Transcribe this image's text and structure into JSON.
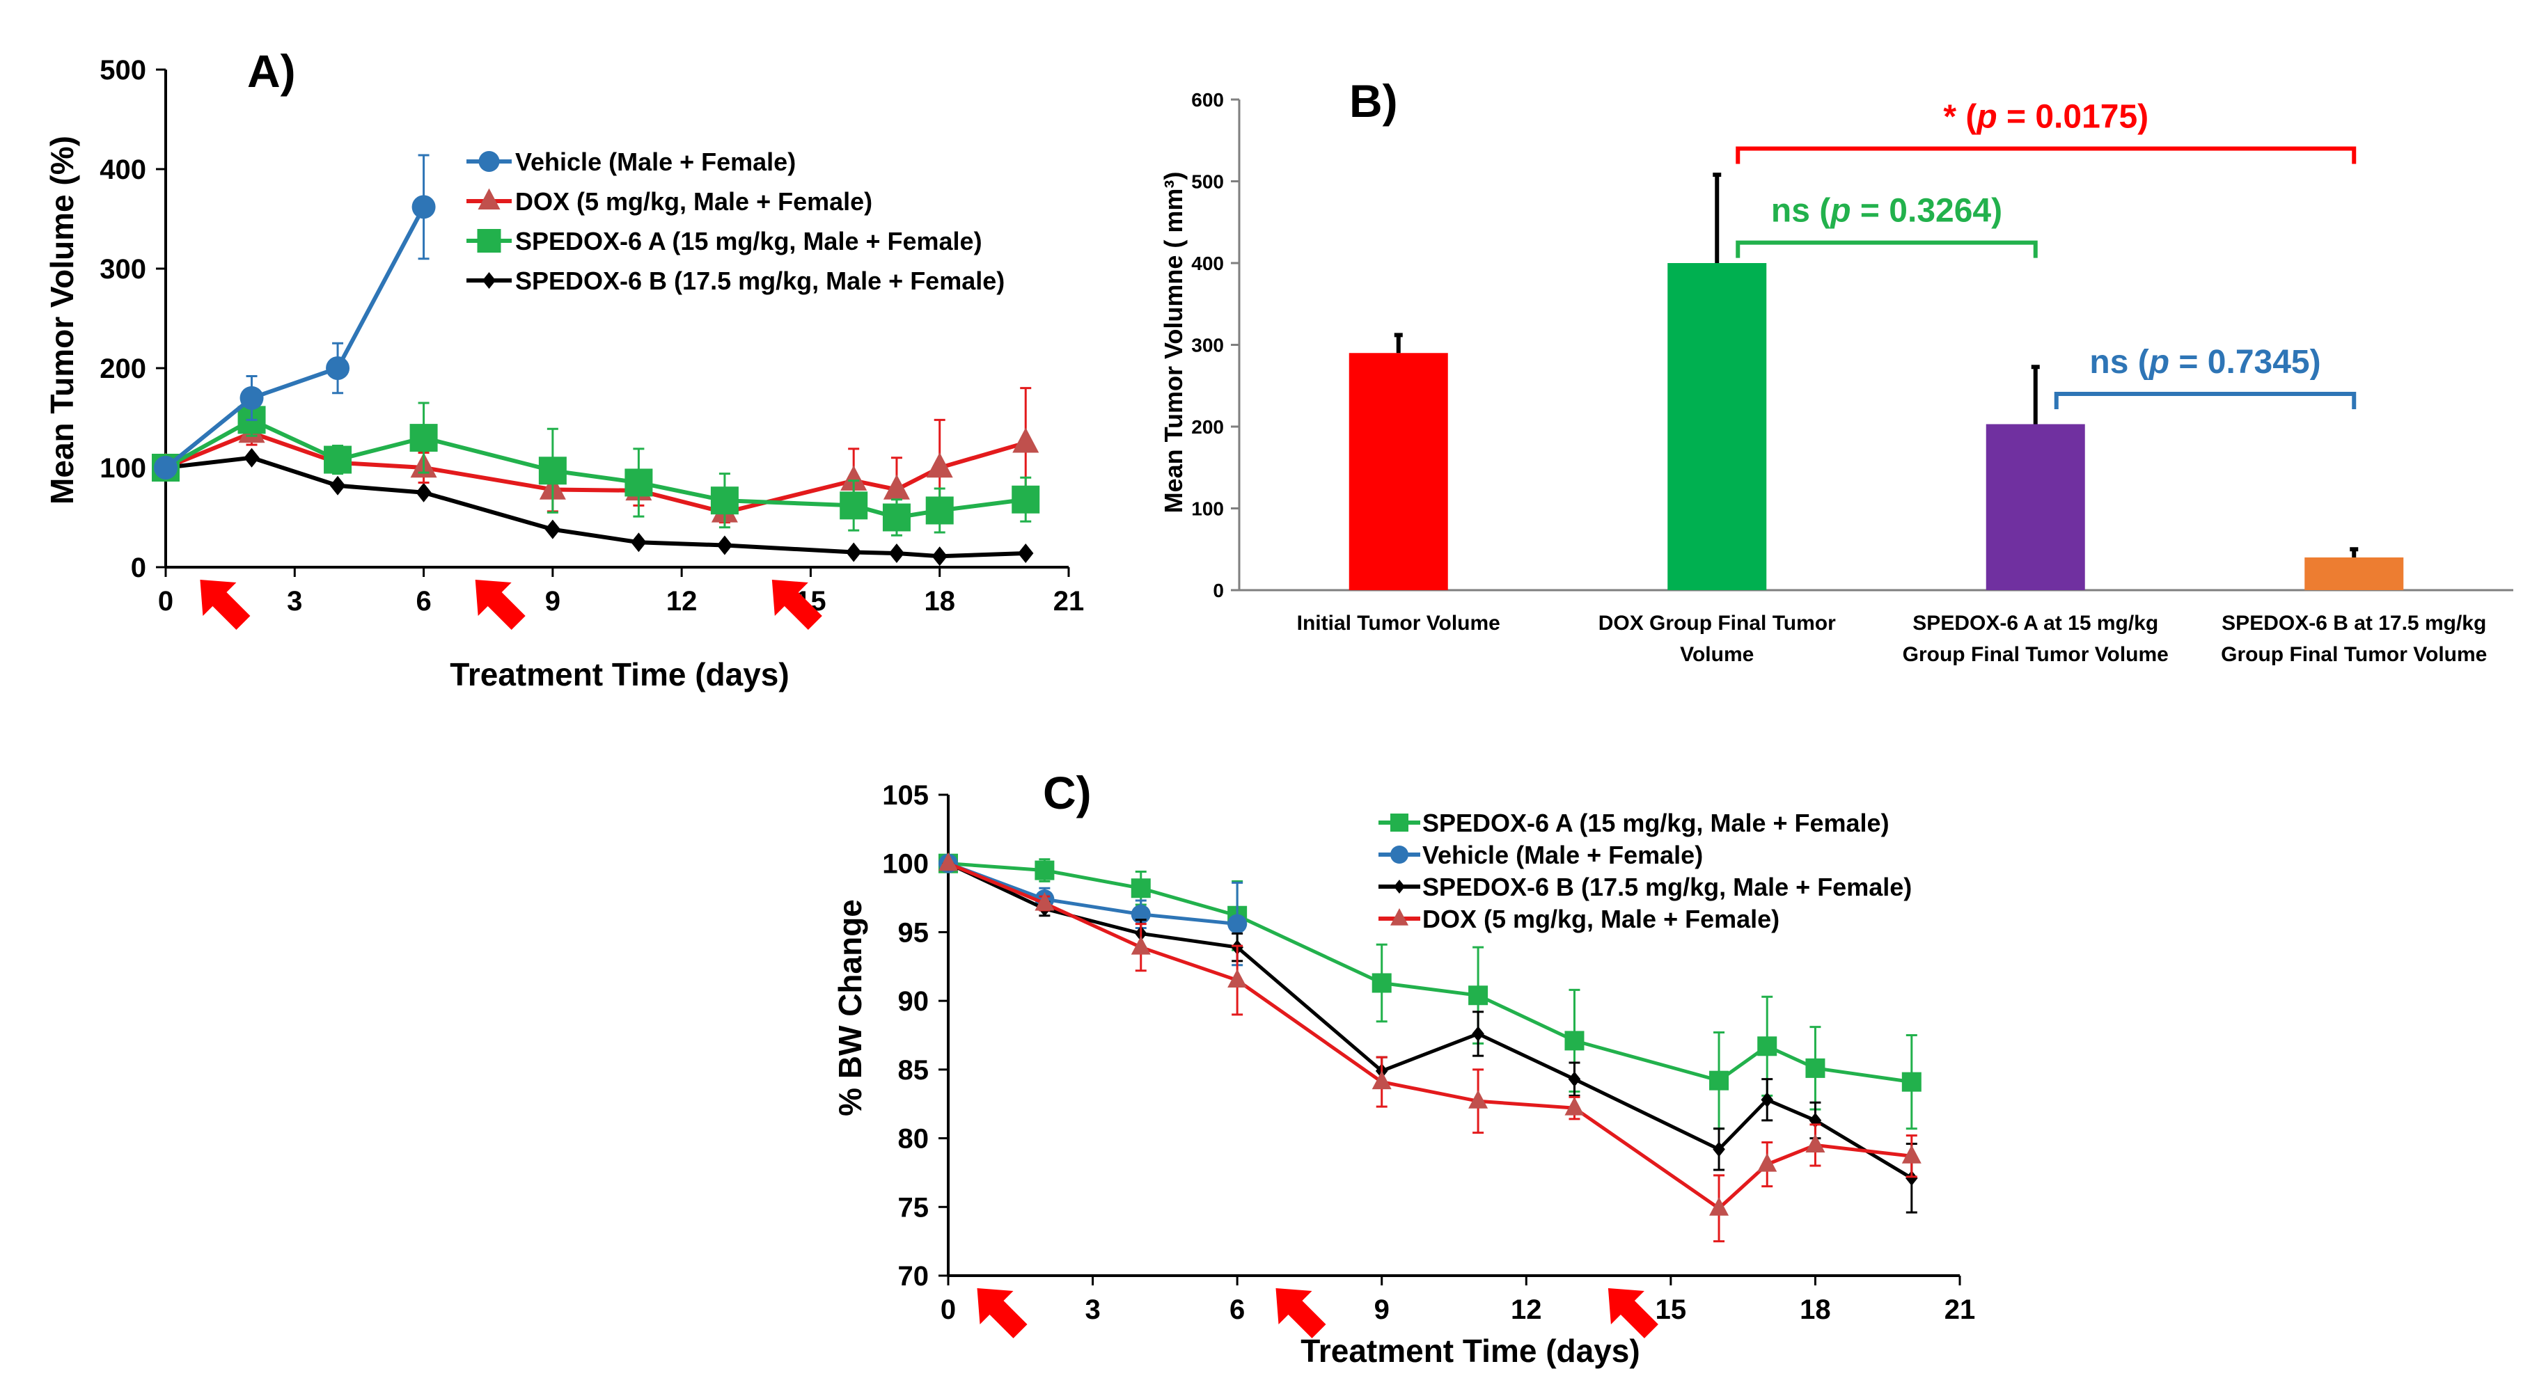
{
  "chart_data": [
    {
      "panel": "A)",
      "type": "line",
      "xlabel": "Treatment Time (days)",
      "ylabel": "Mean Tumor Volume (%)",
      "xlim": [
        0,
        21
      ],
      "ylim": [
        0,
        500
      ],
      "xticks": [
        0,
        3,
        6,
        9,
        12,
        15,
        18,
        21
      ],
      "yticks": [
        0,
        100,
        200,
        300,
        400,
        500
      ],
      "dosing_days": [
        0.8,
        7.2,
        14.1
      ],
      "series": [
        {
          "name": "Vehicle (Male + Female)",
          "color": "#2E75B6",
          "marker": "circle",
          "x": [
            0,
            2,
            4,
            6
          ],
          "y": [
            100,
            170,
            200,
            362
          ],
          "err": [
            0,
            22,
            25,
            52
          ]
        },
        {
          "name": "DOX (5 mg/kg, Male + Female)",
          "color": "#E31A1C",
          "markerColor": "#C0504D",
          "marker": "triangle",
          "x": [
            0,
            2,
            4,
            6,
            9,
            11,
            13,
            16,
            17,
            18,
            20
          ],
          "y": [
            100,
            135,
            105,
            100,
            78,
            77,
            55,
            87,
            78,
            100,
            125
          ],
          "err": [
            0,
            12,
            10,
            15,
            22,
            15,
            10,
            32,
            32,
            48,
            55
          ]
        },
        {
          "name": "SPEDOX-6  A (15 mg/kg, Male + Female)",
          "color": "#22B14C",
          "markerColor": "#22B14C",
          "marker": "square",
          "x": [
            0,
            2,
            4,
            6,
            9,
            11,
            13,
            16,
            17,
            18,
            20
          ],
          "y": [
            100,
            148,
            108,
            130,
            97,
            85,
            67,
            62,
            50,
            57,
            68
          ],
          "err": [
            0,
            16,
            14,
            35,
            42,
            34,
            27,
            25,
            18,
            22,
            22
          ]
        },
        {
          "name": "SPEDOX-6 B (17.5 mg/kg, Male + Female)",
          "color": "#000000",
          "markerColor": "#000000",
          "marker": "diamond",
          "x": [
            0,
            2,
            4,
            6,
            9,
            11,
            13,
            16,
            17,
            18,
            20
          ],
          "y": [
            100,
            110,
            82,
            75,
            38,
            25,
            22,
            15,
            14,
            11,
            14
          ],
          "err": [
            0,
            0,
            0,
            0,
            0,
            0,
            0,
            0,
            0,
            0,
            0
          ]
        }
      ]
    },
    {
      "panel": "B)",
      "type": "bar",
      "ylabel": "Mean Tumor Volumne ( mm³)",
      "ylim": [
        0,
        600
      ],
      "yticks": [
        0,
        100,
        200,
        300,
        400,
        500,
        600
      ],
      "categories": [
        [
          "Initial Tumor Volume"
        ],
        [
          "DOX Group Final Tumor",
          "Volume"
        ],
        [
          "SPEDOX-6  A at 15 mg/kg",
          "Group Final Tumor Volume"
        ],
        [
          "SPEDOX-6 B at 17.5 mg/kg",
          "Group Final Tumor Volume"
        ]
      ],
      "values": [
        290,
        400,
        203,
        40
      ],
      "errors": [
        22,
        108,
        70,
        10
      ],
      "colors": [
        "#FF0000",
        "#00B050",
        "#7030A0",
        "#ED7D31"
      ],
      "comparisons": [
        {
          "text": "* (p = 0.0175)",
          "parts": [
            "* (",
            "p",
            " = 0.0175)"
          ],
          "color": "#FF0000",
          "from": 1,
          "to": 3,
          "level": 540
        },
        {
          "text": "ns (p = 0.3264)",
          "parts": [
            "ns (",
            "p",
            " = 0.3264)"
          ],
          "color": "#22B14C",
          "from": 1,
          "to": 2,
          "level": 425
        },
        {
          "text": "ns (p = 0.7345)",
          "parts": [
            "ns (",
            "p",
            " = 0.7345)"
          ],
          "color": "#2E75B6",
          "from": 2,
          "to": 3,
          "level": 240
        }
      ]
    },
    {
      "panel": "C)",
      "type": "line",
      "xlabel": "Treatment Time (days)",
      "ylabel": "% BW Change",
      "xlim": [
        0,
        21
      ],
      "ylim": [
        70,
        105
      ],
      "xticks": [
        0,
        3,
        6,
        9,
        12,
        15,
        18,
        21
      ],
      "yticks": [
        70,
        75,
        80,
        85,
        90,
        95,
        100,
        105
      ],
      "dosing_days": [
        0.6,
        6.8,
        13.7
      ],
      "series": [
        {
          "name": "SPEDOX-6 A (15 mg/kg, Male + Female)",
          "color": "#22B14C",
          "markerColor": "#22B14C",
          "marker": "square",
          "x": [
            0,
            2,
            4,
            6,
            9,
            11,
            13,
            16,
            17,
            18,
            20
          ],
          "y": [
            100,
            99.5,
            98.2,
            96.2,
            91.3,
            90.4,
            87.1,
            84.2,
            86.7,
            85.1,
            84.1
          ],
          "err": [
            0,
            0.8,
            1.2,
            2.5,
            2.8,
            3.5,
            3.7,
            3.5,
            3.6,
            3.0,
            3.4
          ]
        },
        {
          "name": "Vehicle (Male + Female)",
          "color": "#2E75B6",
          "markerColor": "#2E75B6",
          "marker": "circle",
          "x": [
            0,
            2,
            4,
            6
          ],
          "y": [
            100,
            97.4,
            96.3,
            95.6
          ],
          "err": [
            0,
            0.8,
            1.0,
            3.0
          ]
        },
        {
          "name": "SPEDOX-6 B (17.5 mg/kg, Male + Female)",
          "color": "#000000",
          "markerColor": "#000000",
          "marker": "diamond",
          "x": [
            0,
            2,
            4,
            6,
            9,
            11,
            13,
            16,
            17,
            18,
            20
          ],
          "y": [
            100,
            96.7,
            94.9,
            93.9,
            84.9,
            87.6,
            84.3,
            79.2,
            82.8,
            81.3,
            77.1
          ],
          "err": [
            0,
            0.5,
            1.0,
            1.0,
            1.0,
            1.6,
            1.2,
            1.5,
            1.5,
            1.3,
            2.5
          ]
        },
        {
          "name": "DOX  (5 mg/kg, Male + Female)",
          "color": "#E31A1C",
          "markerColor": "#C0504D",
          "marker": "triangle",
          "x": [
            0,
            2,
            4,
            6,
            9,
            11,
            13,
            16,
            17,
            18,
            20
          ],
          "y": [
            100,
            97.1,
            93.9,
            91.5,
            84.1,
            82.7,
            82.2,
            74.9,
            78.1,
            79.5,
            78.7
          ],
          "err": [
            0,
            0.5,
            1.7,
            2.5,
            1.8,
            2.3,
            0.8,
            2.4,
            1.6,
            1.5,
            1.5
          ]
        }
      ]
    }
  ]
}
